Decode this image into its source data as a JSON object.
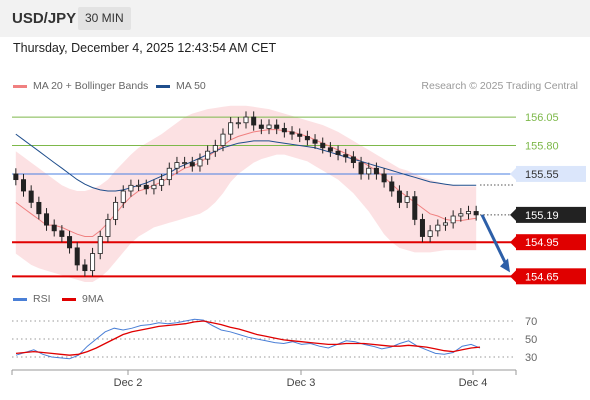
{
  "header": {
    "symbol": "USD/JPY",
    "timeframe": "30 MIN"
  },
  "timestamp": "Thursday, December 4, 2025 12:43:54 AM CET",
  "legend": {
    "ma20_label": "MA 20 + Bollinger Bands",
    "ma20_color": "#f08080",
    "ma50_label": "MA 50",
    "ma50_color": "#1f4e8c",
    "rsi_label": "RSI",
    "rsi_color": "#4a7fd6",
    "rsi_ma_label": "9MA",
    "rsi_ma_color": "#e00000"
  },
  "credit": "Research © 2025 Trading Central",
  "chart_data": [
    {
      "type": "candlestick",
      "title": "USD/JPY 30 MIN",
      "x_tick_labels": [
        "Dec 2",
        "Dec 3",
        "Dec 4"
      ],
      "y_tick_labels": [
        "156.05",
        "155.80",
        "155.55",
        "155.19",
        "154.95",
        "154.65"
      ],
      "ylim": [
        154.6,
        156.2
      ],
      "levels": [
        {
          "name": "resistance-2",
          "value": 156.05,
          "label": "156.05",
          "color": "#7db84a"
        },
        {
          "name": "resistance-1",
          "value": 155.8,
          "label": "155.80",
          "color": "#7db84a"
        },
        {
          "name": "pivot",
          "value": 155.55,
          "label": "155.55",
          "color": "#4a7fe0"
        },
        {
          "name": "support-1",
          "value": 154.95,
          "label": "154.95",
          "color": "#e00000"
        },
        {
          "name": "support-2",
          "value": 154.65,
          "label": "154.65",
          "color": "#e00000"
        }
      ],
      "last_price": {
        "value": 155.19,
        "label": "155.19"
      },
      "forecast": {
        "from": 155.19,
        "to": 154.65,
        "color": "#2d5fa8"
      },
      "close": [
        155.5,
        155.4,
        155.3,
        155.2,
        155.1,
        155.05,
        155.0,
        154.9,
        154.75,
        154.7,
        154.85,
        155.0,
        155.15,
        155.3,
        155.4,
        155.45,
        155.45,
        155.42,
        155.45,
        155.5,
        155.6,
        155.65,
        155.65,
        155.62,
        155.68,
        155.75,
        155.8,
        155.9,
        156.0,
        156.0,
        156.05,
        155.98,
        155.95,
        155.98,
        155.95,
        155.92,
        155.9,
        155.88,
        155.85,
        155.82,
        155.78,
        155.75,
        155.72,
        155.7,
        155.65,
        155.55,
        155.6,
        155.55,
        155.48,
        155.4,
        155.3,
        155.35,
        155.15,
        155.0,
        155.05,
        155.1,
        155.12,
        155.18,
        155.2,
        155.22,
        155.19
      ],
      "open": [
        155.55,
        155.5,
        155.4,
        155.3,
        155.2,
        155.1,
        155.05,
        155.0,
        154.9,
        154.75,
        154.7,
        154.85,
        155.0,
        155.15,
        155.3,
        155.4,
        155.45,
        155.45,
        155.42,
        155.45,
        155.5,
        155.6,
        155.65,
        155.65,
        155.62,
        155.68,
        155.75,
        155.8,
        155.9,
        156.0,
        156.0,
        156.05,
        155.98,
        155.95,
        155.98,
        155.95,
        155.92,
        155.9,
        155.88,
        155.85,
        155.82,
        155.78,
        155.75,
        155.72,
        155.7,
        155.65,
        155.55,
        155.6,
        155.55,
        155.48,
        155.4,
        155.3,
        155.35,
        155.15,
        155.0,
        155.05,
        155.1,
        155.12,
        155.18,
        155.2,
        155.22
      ],
      "ma20": [
        155.3,
        155.25,
        155.2,
        155.15,
        155.1,
        155.1,
        155.08,
        155.05,
        155.02,
        155.0,
        155.0,
        155.05,
        155.12,
        155.2,
        155.28,
        155.35,
        155.4,
        155.42,
        155.45,
        155.48,
        155.52,
        155.56,
        155.6,
        155.62,
        155.65,
        155.7,
        155.75,
        155.8,
        155.85,
        155.88,
        155.9,
        155.92,
        155.93,
        155.94,
        155.94,
        155.93,
        155.92,
        155.9,
        155.88,
        155.85,
        155.82,
        155.79,
        155.76,
        155.73,
        155.7,
        155.66,
        155.62,
        155.58,
        155.52,
        155.46,
        155.4,
        155.35,
        155.3,
        155.25,
        155.2,
        155.18,
        155.15,
        155.14,
        155.14,
        155.15,
        155.16
      ],
      "ma50": [
        155.9,
        155.85,
        155.8,
        155.75,
        155.7,
        155.65,
        155.6,
        155.55,
        155.5,
        155.46,
        155.43,
        155.41,
        155.4,
        155.4,
        155.41,
        155.43,
        155.45,
        155.47,
        155.5,
        155.53,
        155.56,
        155.6,
        155.63,
        155.66,
        155.69,
        155.72,
        155.75,
        155.78,
        155.8,
        155.82,
        155.83,
        155.84,
        155.84,
        155.84,
        155.83,
        155.82,
        155.81,
        155.8,
        155.79,
        155.78,
        155.76,
        155.74,
        155.72,
        155.7,
        155.68,
        155.66,
        155.64,
        155.62,
        155.6,
        155.58,
        155.56,
        155.54,
        155.52,
        155.5,
        155.48,
        155.47,
        155.46,
        155.45,
        155.45,
        155.45,
        155.45
      ],
      "bb_upper": [
        155.75,
        155.7,
        155.65,
        155.6,
        155.55,
        155.5,
        155.45,
        155.42,
        155.4,
        155.4,
        155.42,
        155.45,
        155.5,
        155.58,
        155.65,
        155.72,
        155.78,
        155.82,
        155.86,
        155.9,
        155.95,
        156.0,
        156.05,
        156.08,
        156.1,
        156.12,
        156.13,
        156.14,
        156.15,
        156.15,
        156.15,
        156.14,
        156.13,
        156.12,
        156.1,
        156.08,
        156.06,
        156.04,
        156.02,
        156.0,
        155.98,
        155.95,
        155.92,
        155.88,
        155.84,
        155.8,
        155.76,
        155.72,
        155.68,
        155.64,
        155.6,
        155.58,
        155.55,
        155.52,
        155.5,
        155.48,
        155.46,
        155.45,
        155.44,
        155.44,
        155.44
      ],
      "bb_lower": [
        154.85,
        154.8,
        154.75,
        154.72,
        154.7,
        154.68,
        154.66,
        154.64,
        154.62,
        154.6,
        154.6,
        154.64,
        154.7,
        154.78,
        154.86,
        154.94,
        155.0,
        155.04,
        155.08,
        155.1,
        155.12,
        155.14,
        155.16,
        155.18,
        155.2,
        155.24,
        155.3,
        155.38,
        155.48,
        155.55,
        155.6,
        155.65,
        155.68,
        155.7,
        155.72,
        155.72,
        155.7,
        155.68,
        155.66,
        155.62,
        155.58,
        155.54,
        155.5,
        155.44,
        155.38,
        155.3,
        155.22,
        155.12,
        155.02,
        154.95,
        154.9,
        154.88,
        154.86,
        154.86,
        154.86,
        154.87,
        154.88,
        154.88,
        154.88,
        154.88,
        154.88
      ]
    },
    {
      "type": "line",
      "title": "RSI",
      "y_tick_labels": [
        "70",
        "50",
        "30"
      ],
      "ylim": [
        20,
        80
      ],
      "series": [
        {
          "name": "RSI",
          "values": [
            32,
            35,
            38,
            33,
            30,
            29,
            28,
            32,
            42,
            50,
            58,
            62,
            60,
            62,
            65,
            66,
            68,
            67,
            68,
            70,
            72,
            71,
            65,
            60,
            58,
            55,
            52,
            50,
            48,
            46,
            45,
            47,
            44,
            45,
            42,
            40,
            44,
            48,
            47,
            44,
            42,
            39,
            41,
            45,
            48,
            42,
            38,
            34,
            33,
            35,
            42,
            44,
            40
          ]
        },
        {
          "name": "9MA",
          "values": [
            34,
            35,
            36,
            35,
            34,
            33,
            32,
            33,
            36,
            40,
            45,
            50,
            55,
            58,
            60,
            62,
            64,
            65,
            66,
            67,
            69,
            70,
            68,
            66,
            63,
            61,
            58,
            55,
            53,
            51,
            49,
            48,
            47,
            46,
            45,
            44,
            44,
            45,
            45,
            45,
            44,
            43,
            42,
            42,
            43,
            42,
            41,
            39,
            37,
            36,
            38,
            40,
            41
          ]
        }
      ]
    }
  ]
}
